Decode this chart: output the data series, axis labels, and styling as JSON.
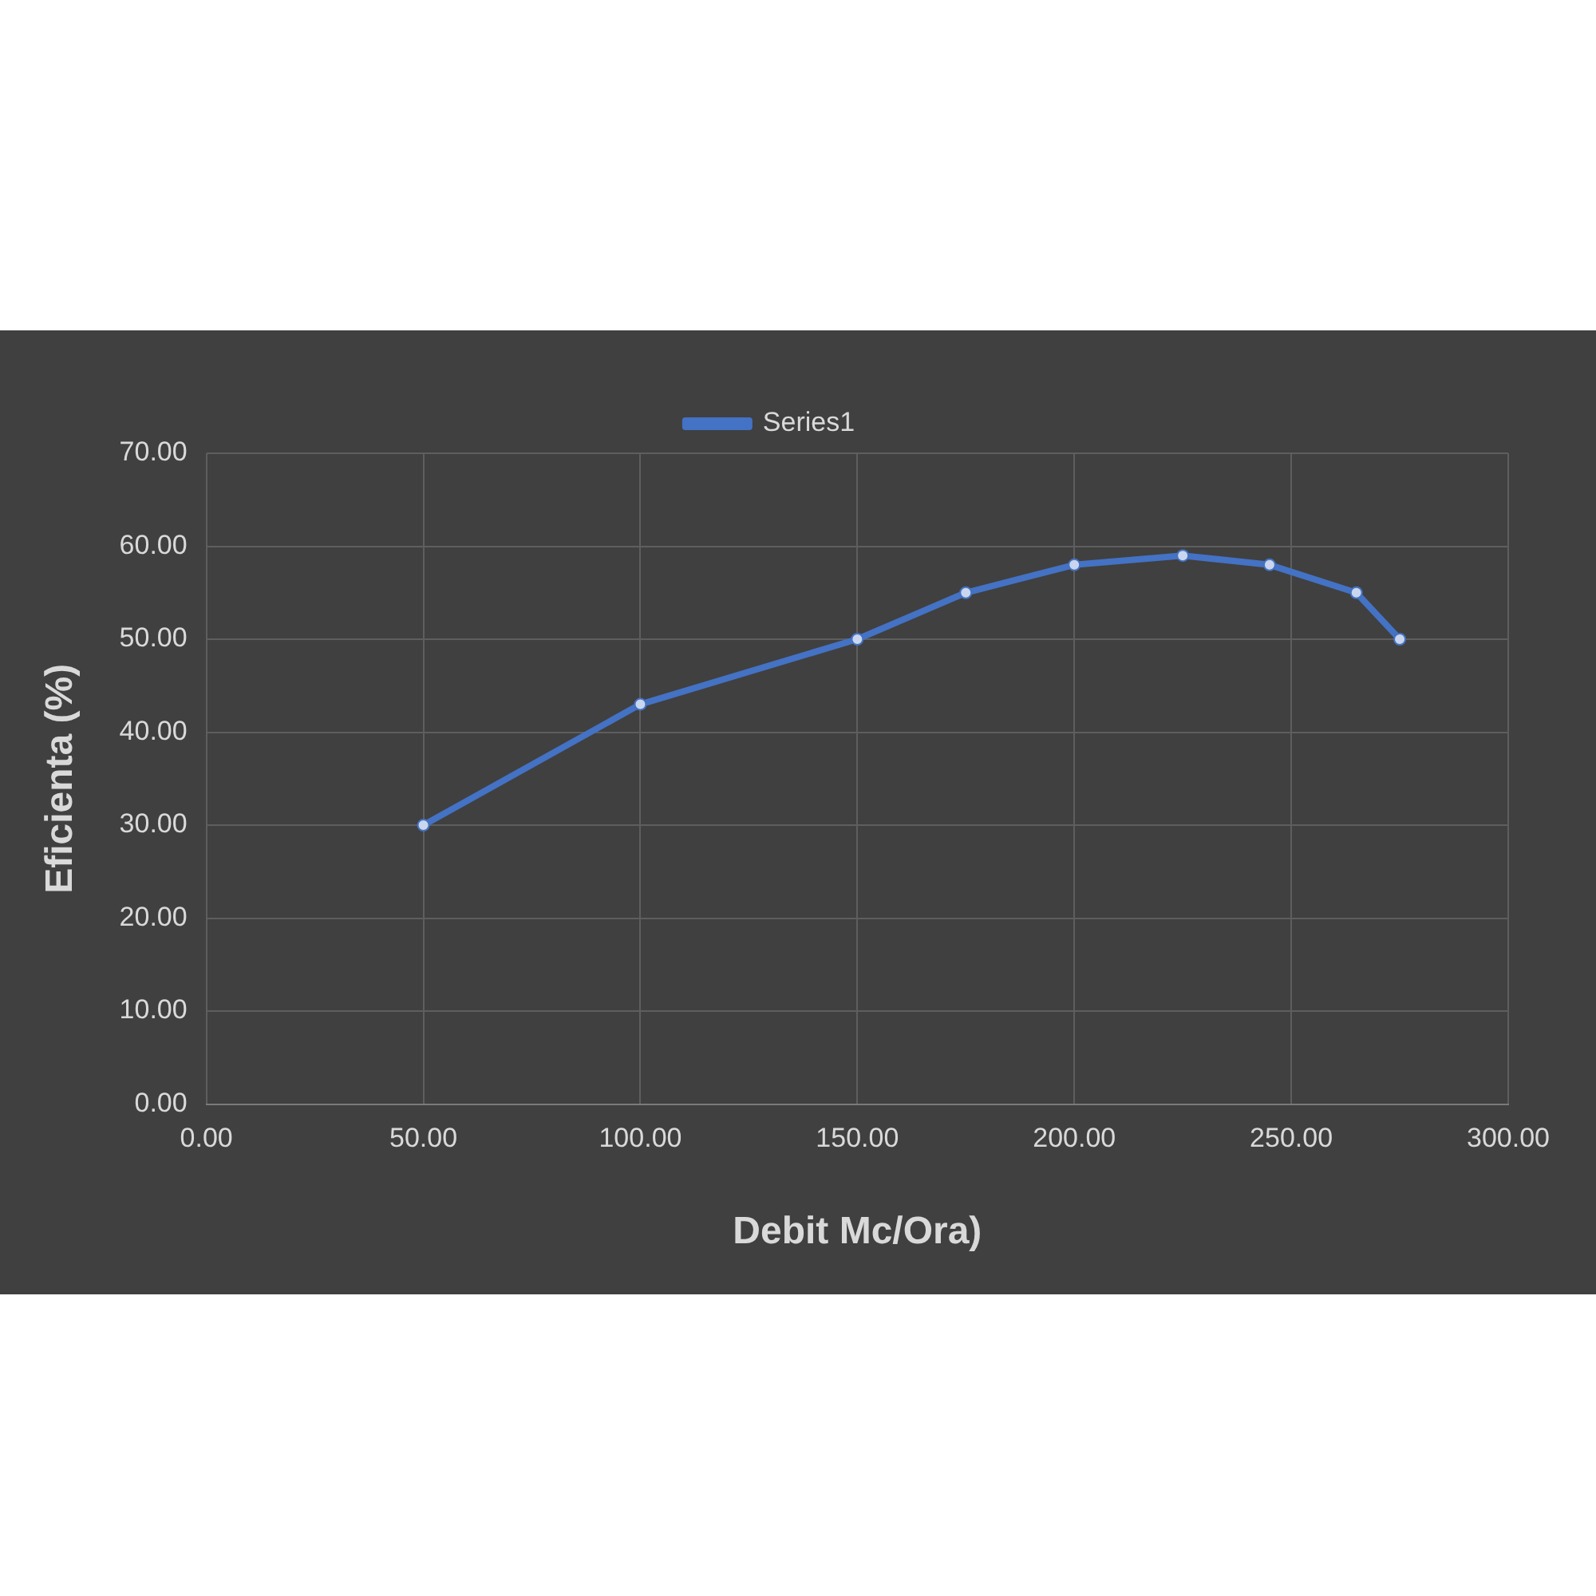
{
  "chart_data": {
    "type": "line",
    "xlabel": "Debit Mc/Ora)",
    "ylabel": "Eficienta (%)",
    "x": [
      50,
      100,
      150,
      175,
      200,
      225,
      245,
      265,
      275
    ],
    "series": [
      {
        "name": "Series1",
        "color": "#4472c4",
        "values": [
          30,
          43,
          50,
          55,
          58,
          59,
          58,
          55,
          50
        ]
      }
    ],
    "xlim": [
      0,
      300
    ],
    "ylim": [
      0,
      70
    ],
    "xticks": [
      {
        "value": 0,
        "label": "0.00"
      },
      {
        "value": 50,
        "label": "50.00"
      },
      {
        "value": 100,
        "label": "100.00"
      },
      {
        "value": 150,
        "label": "150.00"
      },
      {
        "value": 200,
        "label": "200.00"
      },
      {
        "value": 250,
        "label": "250.00"
      },
      {
        "value": 300,
        "label": "300.00"
      }
    ],
    "yticks": [
      {
        "value": 0,
        "label": "0.00"
      },
      {
        "value": 10,
        "label": "10.00"
      },
      {
        "value": 20,
        "label": "20.00"
      },
      {
        "value": 30,
        "label": "30.00"
      },
      {
        "value": 40,
        "label": "40.00"
      },
      {
        "value": 50,
        "label": "50.00"
      },
      {
        "value": 60,
        "label": "60.00"
      },
      {
        "value": 70,
        "label": "70.00"
      }
    ],
    "grid": true,
    "legend": "top",
    "marker": "circle",
    "line_style": "solid"
  }
}
